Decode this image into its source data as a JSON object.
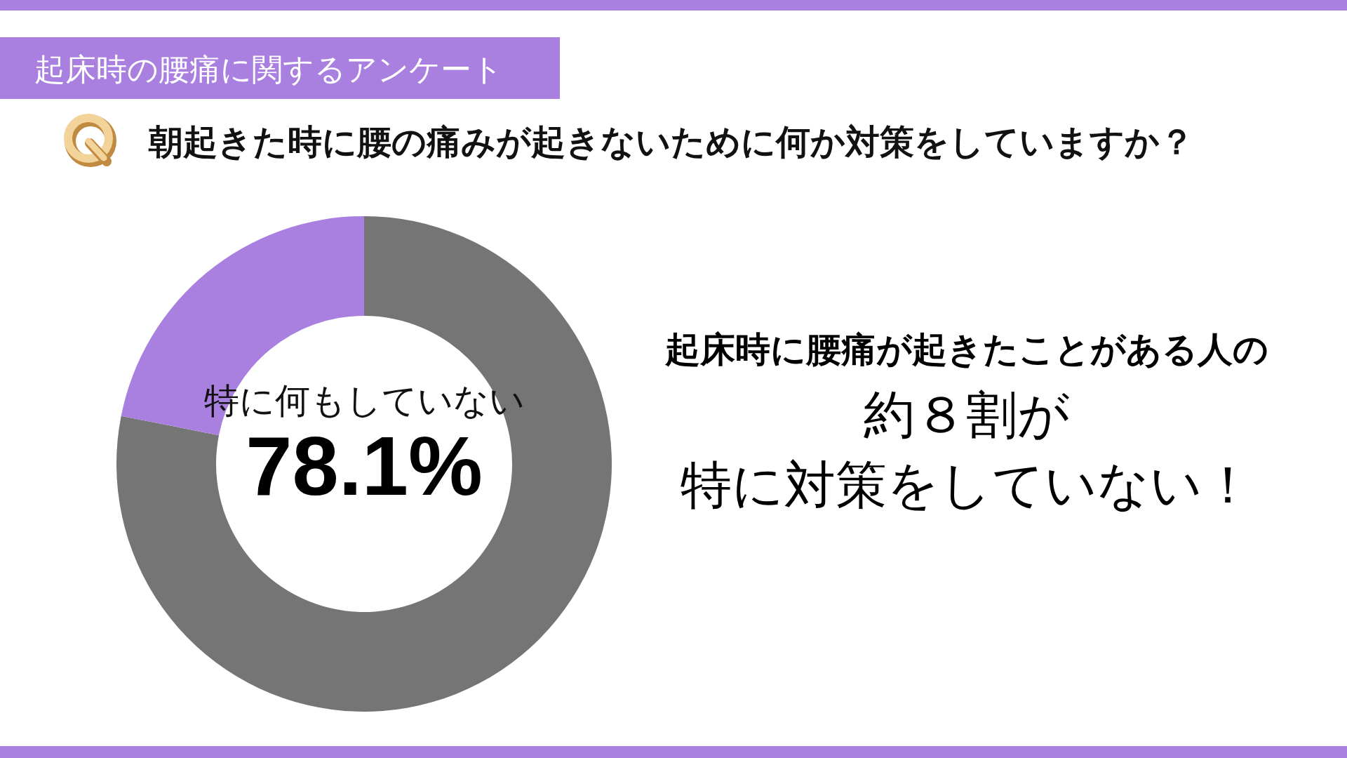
{
  "chart_data": {
    "type": "donut",
    "title": "起床時の腰痛に関するアンケート",
    "subtitle": "朝起きた時に腰の痛みが起きないために何か対策をしていますか？",
    "categories": [
      "特に何もしていない",
      null
    ],
    "values": [
      78.1,
      21.9
    ],
    "colors": [
      "#757575",
      "#a97fe0"
    ],
    "value_labels": [
      "78.1%",
      null
    ],
    "annotations": [
      "起床時に腰痛が起きたことがある人の",
      "約８割が",
      "特に対策をしていない！"
    ]
  }
}
